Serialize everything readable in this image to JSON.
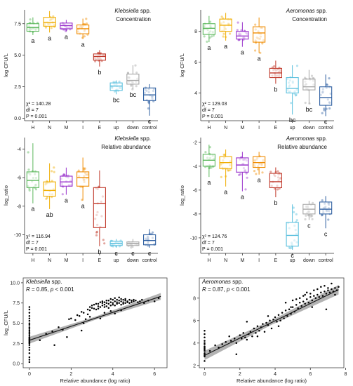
{
  "figure": {
    "background": "#ffffff"
  },
  "colors": {
    "H": "#5cb85c",
    "N": "#f0ad00",
    "M": "#9932cc",
    "I": "#f08c00",
    "E": "#c0392b",
    "up": "#5bc0de",
    "down": "#a6a6a6",
    "control": "#2e5fa1"
  },
  "chart_data": [
    {
      "type": "box",
      "panel": "klebsiella-concentration",
      "title_italic": "Klebsiella",
      "title_rest": "spp.",
      "subtitle": "Concentration",
      "ylabel": "log CFU/L",
      "ylim": [
        -0.2,
        8.6
      ],
      "yticks": [
        0.0,
        2.5,
        5.0,
        7.5
      ],
      "ytick_labels": [
        "0.0",
        "2.5",
        "5.0",
        "7.5"
      ],
      "categories": [
        "H",
        "N",
        "M",
        "I",
        "E",
        "up",
        "down",
        "control"
      ],
      "boxes": [
        {
          "q1": 6.9,
          "median": 7.2,
          "q3": 7.5,
          "wmin": 6.6,
          "wmax": 8.0,
          "letter": "a"
        },
        {
          "q1": 7.3,
          "median": 7.6,
          "q3": 8.0,
          "wmin": 6.8,
          "wmax": 8.5,
          "letter": "a"
        },
        {
          "q1": 7.1,
          "median": 7.35,
          "q3": 7.55,
          "wmin": 6.9,
          "wmax": 7.8,
          "letter": "a"
        },
        {
          "q1": 6.7,
          "median": 7.1,
          "q3": 7.4,
          "wmin": 6.3,
          "wmax": 7.9,
          "letter": "a"
        },
        {
          "q1": 4.6,
          "median": 4.9,
          "q3": 5.1,
          "wmin": 4.1,
          "wmax": 5.4,
          "letter": "b"
        },
        {
          "q1": 2.2,
          "median": 2.55,
          "q3": 2.8,
          "wmin": 1.9,
          "wmax": 3.0,
          "letter": "bc"
        },
        {
          "q1": 2.7,
          "median": 3.0,
          "q3": 3.5,
          "wmin": 2.3,
          "wmax": 4.2,
          "letter": "bc"
        },
        {
          "q1": 1.4,
          "median": 1.85,
          "q3": 2.4,
          "wmin": 0.2,
          "wmax": 2.7,
          "letter": "c"
        }
      ],
      "stats": [
        "χ² = 140.28",
        "df = 7",
        "P = 0.001"
      ]
    },
    {
      "type": "box",
      "panel": "aeromonas-concentration",
      "title_italic": "Aeromonas",
      "title_rest": "spp.",
      "subtitle": "Concentration",
      "ylabel": "log CFU/L",
      "ylim": [
        2.2,
        9.4
      ],
      "yticks": [
        4,
        6,
        8
      ],
      "ytick_labels": [
        "4",
        "6",
        "8"
      ],
      "categories": [
        "H",
        "N",
        "M",
        "I",
        "E",
        "up",
        "down",
        "control"
      ],
      "boxes": [
        {
          "q1": 7.8,
          "median": 8.2,
          "q3": 8.5,
          "wmin": 7.3,
          "wmax": 9.0,
          "letter": "a"
        },
        {
          "q1": 8.0,
          "median": 8.4,
          "q3": 8.8,
          "wmin": 7.4,
          "wmax": 9.2,
          "letter": "a"
        },
        {
          "q1": 7.5,
          "median": 7.7,
          "q3": 8.0,
          "wmin": 7.0,
          "wmax": 8.6,
          "letter": "a"
        },
        {
          "q1": 7.3,
          "median": 7.9,
          "q3": 8.3,
          "wmin": 6.6,
          "wmax": 8.9,
          "letter": "a"
        },
        {
          "q1": 5.0,
          "median": 5.3,
          "q3": 5.6,
          "wmin": 4.6,
          "wmax": 6.1,
          "letter": "b"
        },
        {
          "q1": 4.0,
          "median": 4.3,
          "q3": 5.0,
          "wmin": 2.6,
          "wmax": 5.8,
          "letter": "bc"
        },
        {
          "q1": 4.2,
          "median": 4.4,
          "q3": 4.9,
          "wmin": 3.3,
          "wmax": 5.5,
          "letter": "bc"
        },
        {
          "q1": 3.2,
          "median": 3.7,
          "q3": 4.4,
          "wmin": 2.5,
          "wmax": 5.2,
          "letter": "c"
        }
      ],
      "stats": [
        "χ² = 129.03",
        "df = 7",
        "P = 0.001"
      ]
    },
    {
      "type": "box",
      "panel": "klebsiella-relative-abundance",
      "title_italic": "Klebsiella",
      "title_rest": "spp.",
      "subtitle": "Relative abundance",
      "ylabel": "log_ratio",
      "ylim": [
        -11.3,
        -3.2
      ],
      "yticks": [
        -10,
        -8,
        -6,
        -4
      ],
      "ytick_labels": [
        "-10",
        "-8",
        "-6",
        "-4"
      ],
      "categories": [
        "H",
        "N",
        "M",
        "I",
        "E",
        "up",
        "down",
        "control"
      ],
      "boxes": [
        {
          "q1": -6.7,
          "median": -6.2,
          "q3": -5.6,
          "wmin": -7.8,
          "wmax": -3.6,
          "letter": "a"
        },
        {
          "q1": -7.3,
          "median": -6.9,
          "q3": -6.3,
          "wmin": -8.2,
          "wmax": -5.0,
          "letter": "ab"
        },
        {
          "q1": -6.6,
          "median": -6.3,
          "q3": -5.9,
          "wmin": -7.2,
          "wmax": -5.3,
          "letter": "a"
        },
        {
          "q1": -6.6,
          "median": -6.0,
          "q3": -5.6,
          "wmin": -7.6,
          "wmax": -4.6,
          "letter": "a"
        },
        {
          "q1": -9.5,
          "median": -7.8,
          "q3": -6.7,
          "wmin": -10.8,
          "wmax": -5.5,
          "letter": "b"
        },
        {
          "q1": -10.75,
          "median": -10.6,
          "q3": -10.45,
          "wmin": -10.9,
          "wmax": -10.3,
          "letter": "c"
        },
        {
          "q1": -10.75,
          "median": -10.6,
          "q3": -10.5,
          "wmin": -10.9,
          "wmax": -10.3,
          "letter": "c"
        },
        {
          "q1": -10.7,
          "median": -10.4,
          "q3": -10.0,
          "wmin": -10.9,
          "wmax": -9.6,
          "letter": "c"
        }
      ],
      "stats": [
        "χ² = 116.94",
        "df = 7",
        "P = 0.001"
      ]
    },
    {
      "type": "box",
      "panel": "aeromonas-relative-abundance",
      "title_italic": "Aeromonas",
      "title_rest": "spp.",
      "subtitle": "Relative abundance",
      "ylabel": "log_ratio",
      "ylim": [
        -11.3,
        -1.6
      ],
      "yticks": [
        -10,
        -8,
        -6,
        -4,
        -2
      ],
      "ytick_labels": [
        "-10",
        "-8",
        "-6",
        "-4",
        "-2"
      ],
      "categories": [
        "H",
        "N",
        "M",
        "I",
        "E",
        "up",
        "down",
        "control"
      ],
      "boxes": [
        {
          "q1": -4.0,
          "median": -3.5,
          "q3": -3.0,
          "wmin": -4.9,
          "wmax": -2.2,
          "letter": "a"
        },
        {
          "q1": -4.2,
          "median": -3.7,
          "q3": -3.2,
          "wmin": -5.7,
          "wmax": -2.6,
          "letter": "a"
        },
        {
          "q1": -4.5,
          "median": -3.9,
          "q3": -3.3,
          "wmin": -6.1,
          "wmax": -2.8,
          "letter": "a"
        },
        {
          "q1": -4.1,
          "median": -3.7,
          "q3": -3.2,
          "wmin": -4.7,
          "wmax": -2.8,
          "letter": "a"
        },
        {
          "q1": -5.8,
          "median": -5.3,
          "q3": -4.6,
          "wmin": -6.6,
          "wmax": -4.1,
          "letter": "b"
        },
        {
          "q1": -10.7,
          "median": -9.8,
          "q3": -8.7,
          "wmin": -11.0,
          "wmax": -7.2,
          "letter": "c"
        },
        {
          "q1": -8.0,
          "median": -7.6,
          "q3": -7.2,
          "wmin": -8.5,
          "wmax": -6.9,
          "letter": "c"
        },
        {
          "q1": -8.0,
          "median": -7.6,
          "q3": -7.0,
          "wmin": -9.2,
          "wmax": -6.5,
          "letter": "c"
        }
      ],
      "stats": [
        "χ² = 124.76",
        "df = 7",
        "P = 0.001"
      ]
    },
    {
      "type": "scatter",
      "panel": "klebsiella-regression",
      "title_italic": "Klebsiella",
      "title_rest": "spp.",
      "stat_line": "R = 0.85, p < 0.001",
      "xlabel": "Relative abundance (log ratio)",
      "ylabel": "log_CFU/L",
      "xlim": [
        -0.3,
        6.6
      ],
      "ylim": [
        -0.5,
        10.6
      ],
      "xticks": [
        0,
        2,
        4,
        6
      ],
      "xtick_labels": [
        "0",
        "2",
        "4",
        "6"
      ],
      "yticks": [
        0.0,
        2.5,
        5.0,
        7.5,
        10.0
      ],
      "ytick_labels": [
        "0.0",
        "2.5",
        "5.0",
        "7.5",
        "10.0"
      ],
      "fit": {
        "intercept": 2.9,
        "slope": 0.86
      },
      "x": [
        0,
        0,
        0,
        0,
        0,
        0,
        0,
        0,
        0,
        0,
        0,
        0,
        0,
        0,
        0,
        0,
        0,
        0,
        0,
        0,
        0,
        0,
        0,
        0,
        0,
        0,
        0,
        0,
        0,
        0,
        0.5,
        0.8,
        1.1,
        1.4,
        1.6,
        1.9,
        2.0,
        2.2,
        2.3,
        2.4,
        2.5,
        2.6,
        2.7,
        2.8,
        2.8,
        2.9,
        2.9,
        3.0,
        3.0,
        3.1,
        3.1,
        3.2,
        3.2,
        3.3,
        3.3,
        3.3,
        3.4,
        3.4,
        3.5,
        3.5,
        3.5,
        3.6,
        3.6,
        3.6,
        3.7,
        3.7,
        3.7,
        3.8,
        3.8,
        3.8,
        3.9,
        3.9,
        3.9,
        4.0,
        4.0,
        4.0,
        4.1,
        4.1,
        4.1,
        4.2,
        4.2,
        4.2,
        4.3,
        4.3,
        4.3,
        4.4,
        4.4,
        4.4,
        4.5,
        4.5,
        4.5,
        4.6,
        4.6,
        4.6,
        4.7,
        4.7,
        4.8,
        4.8,
        4.9,
        4.9,
        5.0,
        5.0,
        5.1,
        5.2,
        5.3,
        5.4,
        5.5,
        5.7,
        6.0,
        6.2,
        1.2,
        1.8,
        2.6,
        3.6,
        2.9,
        3.4,
        4.1,
        4.4,
        2.5,
        3.9
      ],
      "y": [
        0.2,
        0.8,
        1.3,
        1.7,
        2.0,
        2.3,
        2.5,
        2.6,
        2.7,
        2.8,
        2.9,
        3.0,
        3.1,
        3.2,
        3.3,
        3.5,
        3.7,
        3.9,
        4.1,
        4.3,
        4.5,
        4.8,
        5.0,
        5.3,
        5.6,
        5.9,
        6.3,
        6.7,
        7.0,
        0.5,
        2.9,
        3.7,
        4.0,
        4.5,
        4.2,
        5.5,
        5.6,
        5.4,
        6.0,
        5.9,
        6.4,
        6.3,
        5.5,
        6.7,
        6.1,
        6.6,
        7.0,
        7.2,
        6.9,
        6.8,
        7.3,
        7.4,
        6.7,
        7.4,
        7.1,
        6.8,
        7.6,
        7.0,
        7.5,
        7.2,
        7.7,
        7.3,
        7.6,
        7.0,
        7.8,
        7.1,
        7.5,
        7.4,
        7.8,
        6.9,
        7.6,
        7.2,
        8.0,
        7.5,
        7.9,
        7.3,
        7.7,
        7.2,
        8.1,
        7.6,
        7.9,
        7.4,
        7.8,
        7.5,
        8.2,
        7.7,
        7.3,
        8.0,
        7.6,
        7.9,
        7.4,
        7.8,
        7.5,
        8.0,
        7.7,
        7.6,
        7.9,
        7.5,
        7.8,
        7.6,
        7.9,
        7.7,
        7.8,
        7.6,
        7.7,
        7.9,
        7.5,
        7.8,
        7.7,
        8.1,
        2.3,
        3.3,
        5.0,
        6.3,
        5.8,
        5.6,
        6.2,
        6.6,
        4.1,
        6.5
      ]
    },
    {
      "type": "scatter",
      "panel": "aeromonas-regression",
      "title_italic": "Aeromonas",
      "title_rest": "spp.",
      "stat_line": "R = 0.87, p < 0.001",
      "xlabel": "Relative abundance (log ratio)",
      "ylabel": "",
      "xlim": [
        -0.3,
        7.9
      ],
      "ylim": [
        1.8,
        9.8
      ],
      "xticks": [
        0,
        2,
        4,
        6,
        8
      ],
      "xtick_labels": [
        "0",
        "2",
        "4",
        "6",
        "8"
      ],
      "yticks": [
        2,
        4,
        6,
        8
      ],
      "ytick_labels": [
        "2",
        "4",
        "6",
        "8"
      ],
      "fit": {
        "intercept": 2.9,
        "slope": 0.77
      },
      "x": [
        0,
        0,
        0,
        0,
        0,
        0,
        0,
        0,
        0,
        0,
        0,
        0,
        0,
        0,
        0,
        0,
        0.3,
        0.6,
        0.8,
        1.0,
        1.2,
        1.4,
        1.5,
        1.7,
        1.8,
        2.0,
        2.1,
        2.2,
        2.3,
        2.4,
        2.5,
        2.6,
        2.7,
        2.8,
        2.9,
        3.0,
        3.1,
        3.2,
        3.3,
        3.4,
        3.5,
        3.6,
        3.7,
        3.8,
        3.9,
        4.0,
        4.1,
        4.2,
        4.3,
        4.4,
        4.5,
        4.6,
        4.7,
        4.8,
        4.9,
        5.0,
        5.1,
        5.2,
        5.3,
        5.4,
        5.5,
        5.6,
        5.7,
        5.8,
        5.9,
        6.0,
        6.1,
        6.2,
        6.3,
        6.4,
        6.5,
        6.6,
        6.7,
        6.8,
        6.9,
        7.0,
        7.1,
        7.2,
        7.3,
        7.4,
        7.5,
        7.6,
        5.2,
        5.6,
        6.0,
        6.4,
        6.8,
        7.2,
        4.6,
        5.0,
        5.4,
        5.8,
        6.2,
        6.6,
        7.0,
        7.4,
        3.0,
        3.6,
        4.2,
        2.4,
        1.8,
        6.1,
        6.9,
        5.7,
        4.9
      ],
      "y": [
        2.4,
        2.8,
        3.0,
        3.1,
        3.3,
        3.5,
        3.7,
        3.9,
        4.2,
        4.5,
        4.8,
        5.1,
        3.6,
        4.0,
        2.9,
        3.4,
        3.3,
        3.8,
        3.6,
        3.9,
        4.1,
        4.6,
        4.2,
        4.4,
        4.0,
        4.7,
        4.4,
        4.9,
        4.5,
        4.3,
        4.8,
        5.0,
        4.6,
        5.3,
        4.9,
        5.5,
        5.1,
        5.4,
        5.7,
        5.0,
        5.8,
        5.6,
        6.0,
        5.3,
        6.1,
        6.3,
        5.9,
        6.5,
        6.0,
        6.7,
        6.2,
        6.9,
        6.4,
        7.0,
        6.6,
        7.2,
        6.8,
        7.4,
        7.1,
        7.6,
        7.3,
        7.7,
        7.5,
        7.9,
        7.6,
        8.1,
        7.8,
        8.2,
        8.0,
        8.3,
        8.1,
        8.5,
        8.2,
        8.6,
        8.4,
        8.7,
        8.5,
        8.8,
        8.6,
        8.9,
        8.7,
        9.0,
        7.9,
        8.2,
        8.4,
        8.8,
        9.1,
        9.3,
        7.6,
        7.8,
        8.0,
        8.5,
        8.7,
        9.0,
        8.9,
        8.3,
        4.6,
        6.4,
        5.5,
        5.9,
        3.0,
        7.2,
        7.0,
        8.3,
        7.2
      ]
    }
  ]
}
